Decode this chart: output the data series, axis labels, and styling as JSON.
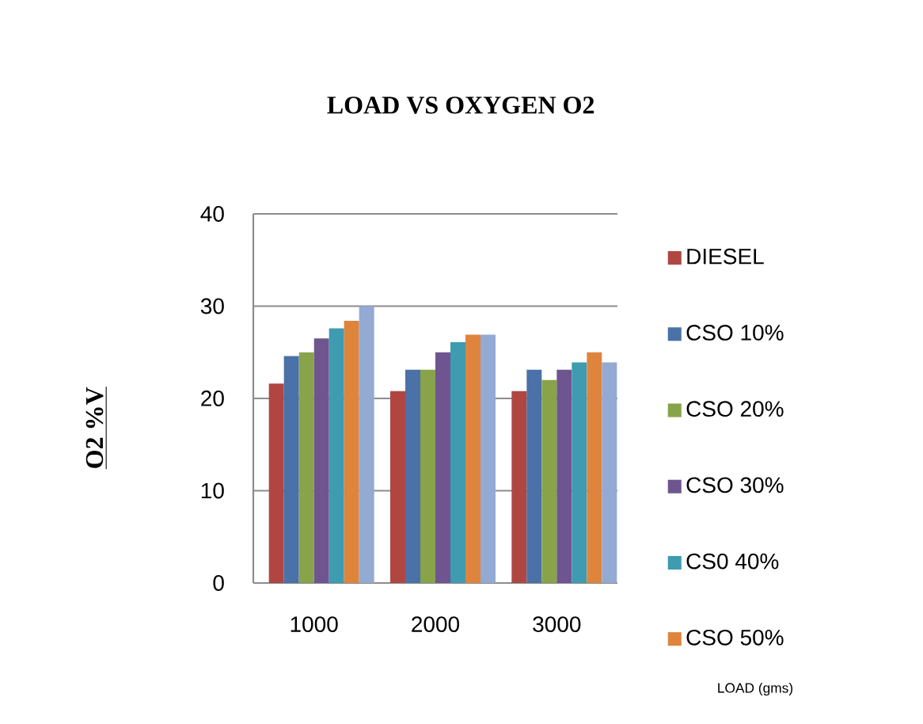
{
  "chart_data": {
    "type": "bar",
    "title": "LOAD VS OXYGEN O2",
    "annotations": [
      "LOAD (gms)"
    ],
    "ylabel": "O2 %V",
    "categories": [
      "1000",
      "2000",
      "3000"
    ],
    "series": [
      {
        "name": "DIESEL",
        "color": "#b04642",
        "values": [
          21.6,
          20.8,
          20.8
        ]
      },
      {
        "name": "CSO 10%",
        "color": "#4a71a8",
        "values": [
          24.6,
          23.1,
          23.1
        ]
      },
      {
        "name": "CSO 20%",
        "color": "#88a34a",
        "values": [
          25.0,
          23.1,
          22.0
        ]
      },
      {
        "name": "CSO 30%",
        "color": "#6f558f",
        "values": [
          26.5,
          25.0,
          23.1
        ]
      },
      {
        "name": "CS0 40%",
        "color": "#3e9bb0",
        "values": [
          27.6,
          26.1,
          23.9
        ]
      },
      {
        "name": "CSO 50%",
        "color": "#df843d",
        "values": [
          28.4,
          26.9,
          25.0
        ]
      },
      {
        "color": "#93aad3",
        "values": [
          30.0,
          26.9,
          23.9
        ]
      }
    ],
    "ylim": [
      0,
      40
    ],
    "yticks": [
      0,
      10,
      20,
      30,
      40
    ],
    "grid": "y",
    "legend": "right"
  }
}
